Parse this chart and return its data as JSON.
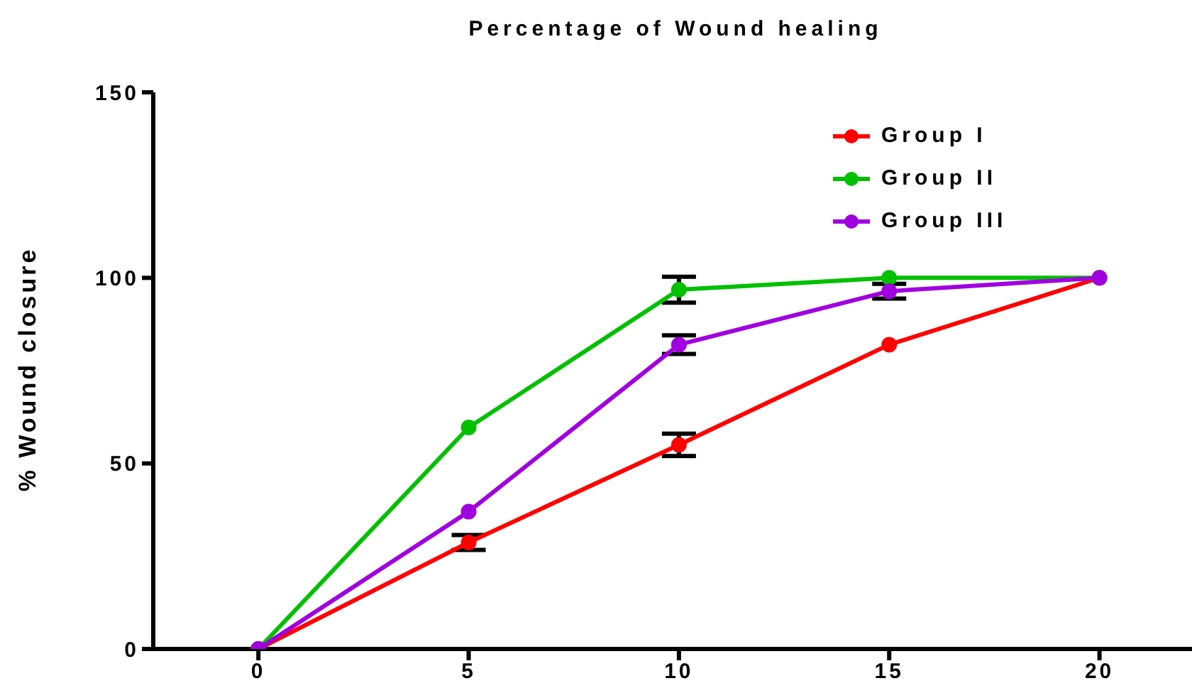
{
  "chart_data": {
    "type": "line",
    "title": "Percentage of Wound healing",
    "ylabel": "% Wound closure",
    "x": [
      0,
      5,
      10,
      15,
      20
    ],
    "series": [
      {
        "name": "Group I",
        "color": "#ff0000",
        "values": [
          0,
          28.7,
          55,
          82,
          100
        ],
        "errors": [
          null,
          2,
          3,
          null,
          null
        ]
      },
      {
        "name": "Group II",
        "color": "#00c000",
        "values": [
          0,
          59.7,
          96.8,
          100,
          100
        ],
        "errors": [
          null,
          null,
          3.5,
          null,
          null
        ]
      },
      {
        "name": "Group III",
        "color": "#a000e0",
        "values": [
          0,
          37,
          82,
          96.4,
          100
        ],
        "errors": [
          null,
          null,
          2.5,
          2,
          null
        ]
      }
    ],
    "xlim": [
      -2.5,
      22.2
    ],
    "xticks": [
      0,
      5,
      10,
      15,
      20
    ],
    "ylim": [
      0,
      150
    ],
    "yticks": [
      0,
      50,
      100,
      150
    ],
    "grid": false,
    "legend": "top right",
    "marker": "circle",
    "line_style": "solid"
  }
}
